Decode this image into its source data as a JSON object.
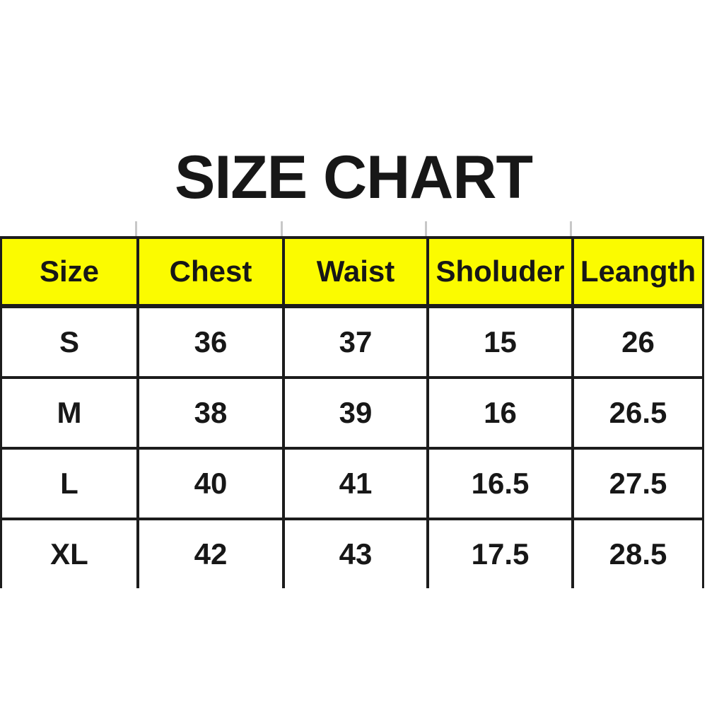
{
  "title": "SIZE CHART",
  "chart_data": {
    "type": "table",
    "title": "SIZE CHART",
    "columns": [
      "Size",
      "Chest",
      "Waist",
      "Sholuder",
      "Leangth"
    ],
    "rows": [
      [
        "S",
        "36",
        "37",
        "15",
        "26"
      ],
      [
        "M",
        "38",
        "39",
        "16",
        "26.5"
      ],
      [
        "L",
        "40",
        "41",
        "16.5",
        "27.5"
      ],
      [
        "XL",
        "42",
        "43",
        "17.5",
        "28.5"
      ]
    ],
    "header_style": "yellow background, bold black text",
    "notes": "table has no bottom border; column rules end below last row"
  },
  "colors": {
    "header_bg": "#fbfb00",
    "border": "#1c1c1c",
    "text": "#171717",
    "background": "#ffffff"
  }
}
